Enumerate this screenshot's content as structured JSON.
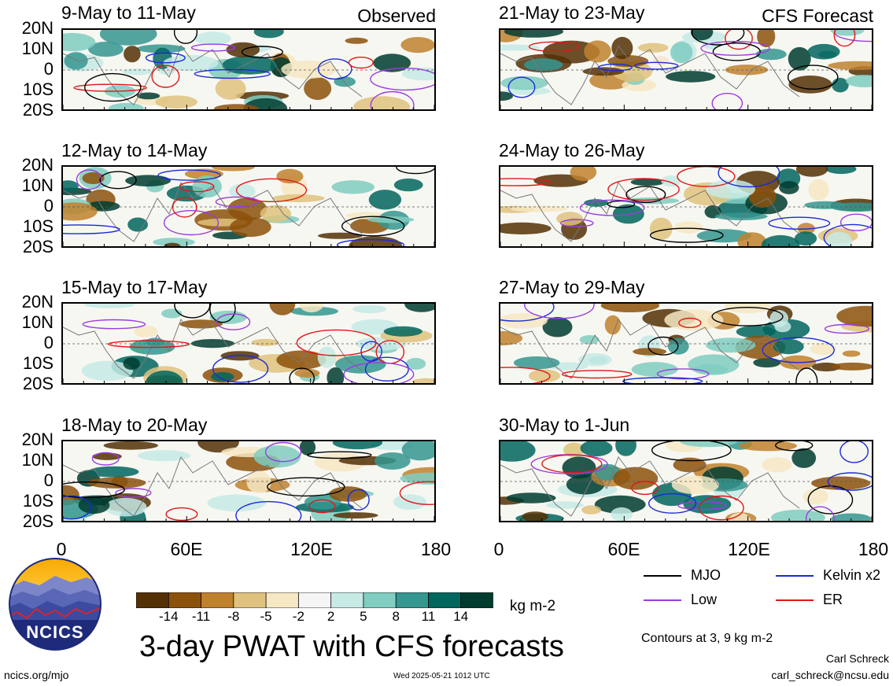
{
  "corner_labels": {
    "left": "Observed",
    "right": "CFS Forecast"
  },
  "panels": {
    "left": [
      {
        "title": "9-May to 11-May"
      },
      {
        "title": "12-May to 14-May"
      },
      {
        "title": "15-May to 17-May"
      },
      {
        "title": "18-May to 20-May"
      }
    ],
    "right": [
      {
        "title": "21-May to 23-May"
      },
      {
        "title": "24-May to 26-May"
      },
      {
        "title": "27-May to 29-May"
      },
      {
        "title": "30-May to 1-Jun"
      }
    ]
  },
  "lat_labels": [
    "20N",
    "10N",
    "0",
    "10S",
    "20S"
  ],
  "lon_labels": [
    "0",
    "60E",
    "120E",
    "180"
  ],
  "legend": {
    "mjo": {
      "label": "MJO",
      "color": "#000000"
    },
    "kelvin": {
      "label": "Kelvin x2",
      "color": "#1a2ad8"
    },
    "low": {
      "label": "Low",
      "color": "#9a3ce0"
    },
    "er": {
      "label": "ER",
      "color": "#e01818"
    }
  },
  "colorbar": {
    "ticks": [
      "-14",
      "-11",
      "-8",
      "-5",
      "-2",
      "2",
      "5",
      "8",
      "11",
      "14"
    ],
    "colors": [
      "#543005",
      "#8c510a",
      "#bf812d",
      "#dfc27d",
      "#f6e8c3",
      "#f5f5f5",
      "#c7eae5",
      "#80cdc1",
      "#35978f",
      "#01665e",
      "#003c30"
    ],
    "units": "kg m-2"
  },
  "main_title": "3-day PWAT with CFS forecasts",
  "contours_note": "Contours at 3, 9 kg m-2",
  "author": "Carl Schreck",
  "email": "carl_schreck@ncsu.edu",
  "site": "ncics.org/mjo",
  "timestamp": "Wed 2025-05-21 1012 UTC",
  "logo_text": "NCICS"
}
